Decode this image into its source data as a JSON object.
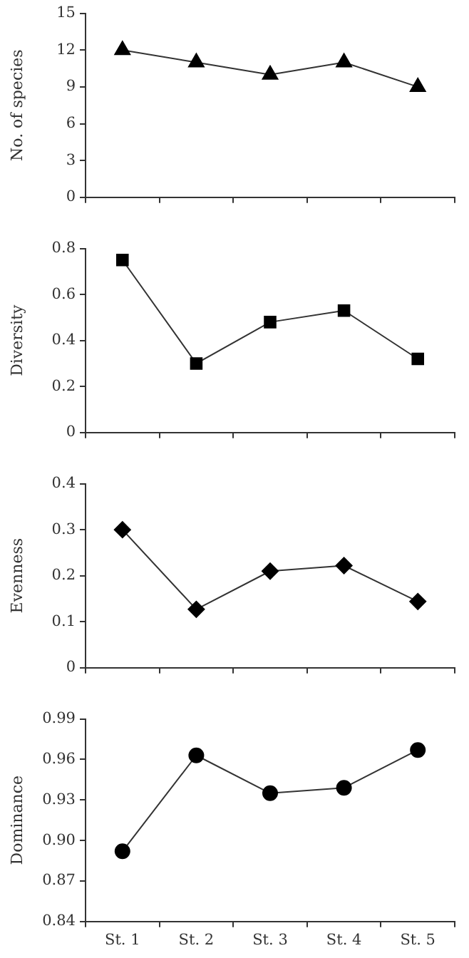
{
  "chart_data": [
    {
      "type": "line",
      "ylabel": "No. of species",
      "categories": [
        null,
        null,
        null,
        null,
        null
      ],
      "values": [
        12,
        11,
        10,
        11,
        9
      ],
      "color": "#000000",
      "marker": "triangle",
      "ylim": [
        0,
        15
      ],
      "yticks": [
        0,
        3,
        6,
        9,
        12,
        15
      ],
      "grid": false
    },
    {
      "type": "line",
      "ylabel": "Diversity",
      "categories": [
        null,
        null,
        null,
        null,
        null
      ],
      "values": [
        0.75,
        0.3,
        0.48,
        0.53,
        0.32
      ],
      "color": "#000000",
      "marker": "square",
      "ylim": [
        0,
        0.8
      ],
      "yticks": [
        0,
        0.2,
        0.4,
        0.6,
        0.8
      ],
      "grid": false
    },
    {
      "type": "line",
      "ylabel": "Evenness",
      "categories": [
        null,
        null,
        null,
        null,
        null
      ],
      "values": [
        0.3,
        0.127,
        0.21,
        0.222,
        0.144
      ],
      "color": "#000000",
      "marker": "diamond",
      "ylim": [
        0,
        0.4
      ],
      "yticks": [
        0,
        0.1,
        0.2,
        0.3,
        0.4
      ],
      "grid": false
    },
    {
      "type": "line",
      "ylabel": "Dominance",
      "categories": [
        "St. 1",
        "St. 2",
        "St. 3",
        "St. 4",
        "St. 5"
      ],
      "values": [
        0.892,
        0.963,
        0.935,
        0.939,
        0.967
      ],
      "color": "#000000",
      "marker": "circle",
      "ylim": [
        0.84,
        0.99
      ],
      "yticks": [
        0.84,
        0.87,
        {
          "value": 0.9,
          "label": "0.90"
        },
        0.93,
        0.96,
        0.99
      ],
      "grid": false
    }
  ]
}
